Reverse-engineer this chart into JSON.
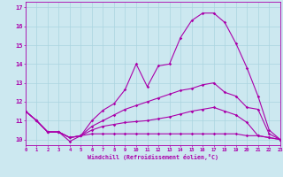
{
  "xlabel": "Windchill (Refroidissement éolien,°C)",
  "bg_color": "#cce8f0",
  "grid_color": "#aad4e0",
  "line_color": "#aa00aa",
  "spine_color": "#aa00aa",
  "line1": {
    "x": [
      0,
      1,
      2,
      3,
      4,
      5,
      6,
      7,
      8,
      9,
      10,
      11,
      12,
      13,
      14,
      15,
      16,
      17,
      18,
      19,
      20,
      21,
      22,
      23
    ],
    "y": [
      11.5,
      11.0,
      10.4,
      10.4,
      9.9,
      10.2,
      11.0,
      11.55,
      11.9,
      12.65,
      14.0,
      12.8,
      13.9,
      14.0,
      15.4,
      16.3,
      16.7,
      16.7,
      16.2,
      15.1,
      13.8,
      12.3,
      10.5,
      10.0
    ]
  },
  "line2": {
    "x": [
      0,
      1,
      2,
      3,
      4,
      5,
      6,
      7,
      8,
      9,
      10,
      11,
      12,
      13,
      14,
      15,
      16,
      17,
      18,
      19,
      20,
      21,
      22,
      23
    ],
    "y": [
      11.5,
      11.0,
      10.4,
      10.4,
      10.1,
      10.2,
      10.7,
      11.0,
      11.3,
      11.6,
      11.8,
      12.0,
      12.2,
      12.4,
      12.6,
      12.7,
      12.9,
      13.0,
      12.5,
      12.3,
      11.7,
      11.6,
      10.3,
      10.0
    ]
  },
  "line3": {
    "x": [
      0,
      1,
      2,
      3,
      4,
      5,
      6,
      7,
      8,
      9,
      10,
      11,
      12,
      13,
      14,
      15,
      16,
      17,
      18,
      19,
      20,
      21,
      22,
      23
    ],
    "y": [
      11.5,
      11.0,
      10.4,
      10.4,
      10.1,
      10.2,
      10.5,
      10.7,
      10.8,
      10.9,
      10.95,
      11.0,
      11.1,
      11.2,
      11.35,
      11.5,
      11.6,
      11.7,
      11.5,
      11.3,
      10.9,
      10.2,
      10.1,
      10.0
    ]
  },
  "line4": {
    "x": [
      0,
      1,
      2,
      3,
      4,
      5,
      6,
      7,
      8,
      9,
      10,
      11,
      12,
      13,
      14,
      15,
      16,
      17,
      18,
      19,
      20,
      21,
      22,
      23
    ],
    "y": [
      11.5,
      11.0,
      10.4,
      10.4,
      10.1,
      10.2,
      10.3,
      10.3,
      10.3,
      10.3,
      10.3,
      10.3,
      10.3,
      10.3,
      10.3,
      10.3,
      10.3,
      10.3,
      10.3,
      10.3,
      10.2,
      10.2,
      10.1,
      10.0
    ]
  },
  "ylim": [
    9.7,
    17.3
  ],
  "xlim": [
    0,
    23
  ],
  "yticks": [
    10,
    11,
    12,
    13,
    14,
    15,
    16,
    17
  ],
  "xticks": [
    0,
    1,
    2,
    3,
    4,
    5,
    6,
    7,
    8,
    9,
    10,
    11,
    12,
    13,
    14,
    15,
    16,
    17,
    18,
    19,
    20,
    21,
    22,
    23
  ]
}
